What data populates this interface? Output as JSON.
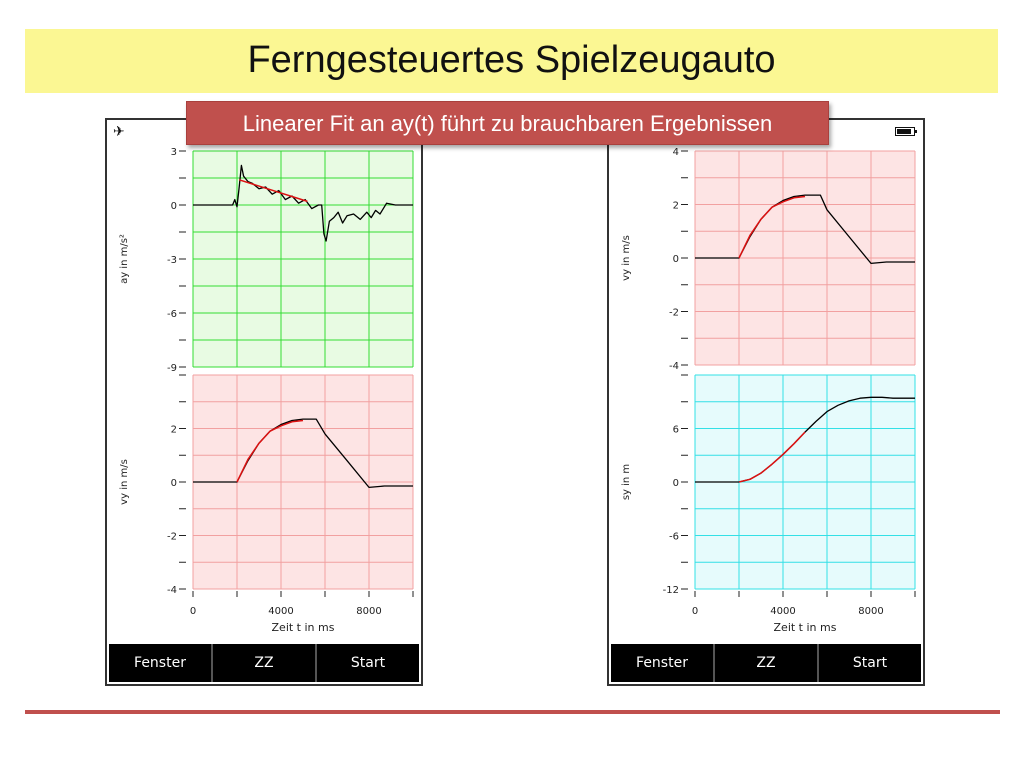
{
  "title": "Ferngesteuertes Spielzeugauto",
  "callout": "Linearer Fit an ay(t) führt zu brauchbaren Ergebnissen",
  "colors": {
    "green_bg": "#e8fbe3",
    "green_grid": "#33dd33",
    "red_bg": "#fde4e4",
    "red_grid": "#f2a0a0",
    "cyan_bg": "#e6fbfc",
    "cyan_grid": "#33e0e6",
    "curve": "#000000",
    "fit": "#dd1111",
    "accent": "#c0504d"
  },
  "phones": [
    {
      "status_icon": "airplane-icon",
      "status_glyph": "✈",
      "xlabel": "Zeit t in ms",
      "buttons": [
        "Fenster",
        "ZZ",
        "Start"
      ]
    },
    {
      "status_icon": "battery-icon",
      "xlabel": "Zeit t in ms",
      "buttons": [
        "Fenster",
        "ZZ",
        "Start"
      ]
    }
  ],
  "chart_data": [
    {
      "type": "line",
      "ylabel": "ay in m/s²",
      "xlim": [
        0,
        10000
      ],
      "ylim": [
        -9,
        3
      ],
      "yticks": [
        3,
        0,
        -3,
        -6,
        -9
      ],
      "theme": "green",
      "series": [
        {
          "x": [
            0,
            1800,
            1900,
            2000,
            2100,
            2200,
            2300,
            2500,
            2700,
            3000,
            3300,
            3600,
            3900,
            4200,
            4500,
            4800,
            5100,
            5400,
            5700,
            5850,
            5950,
            6050,
            6200,
            6400,
            6600,
            6800,
            7000,
            7300,
            7600,
            7900,
            8100,
            8300,
            8500,
            8800,
            9200,
            10000
          ],
          "y": [
            0,
            0,
            0.3,
            -0.1,
            1.0,
            2.2,
            1.6,
            1.3,
            1.2,
            0.9,
            1.0,
            0.6,
            0.8,
            0.3,
            0.5,
            0.1,
            0.3,
            -0.2,
            0,
            0,
            -1.6,
            -2.0,
            -0.9,
            -0.7,
            -0.4,
            -1.0,
            -0.6,
            -0.5,
            -0.8,
            -0.4,
            -0.7,
            -0.3,
            -0.5,
            0.1,
            0,
            0
          ]
        },
        {
          "x": [
            2100,
            5200
          ],
          "y": [
            1.4,
            0.2
          ],
          "fit": true
        }
      ]
    },
    {
      "type": "line",
      "ylabel": "vy in m/s",
      "xlim": [
        0,
        10000
      ],
      "ylim": [
        -4,
        4
      ],
      "yticks": [
        2,
        0,
        -2,
        -4
      ],
      "xticks": [
        0,
        4000,
        8000
      ],
      "theme": "red",
      "series": [
        {
          "x": [
            0,
            2000,
            2500,
            3000,
            3500,
            4000,
            4500,
            5000,
            5600,
            6000,
            7000,
            8000,
            8700,
            9000,
            10000
          ],
          "y": [
            0,
            0,
            0.8,
            1.45,
            1.9,
            2.15,
            2.3,
            2.35,
            2.35,
            1.8,
            0.8,
            -0.2,
            -0.15,
            -0.15,
            -0.15
          ]
        },
        {
          "x": [
            2000,
            2500,
            3000,
            3500,
            4000,
            4500,
            5000
          ],
          "y": [
            0,
            0.85,
            1.45,
            1.9,
            2.1,
            2.25,
            2.3
          ],
          "fit": true
        }
      ]
    },
    {
      "type": "line",
      "ylabel": "vy in m/s",
      "xlim": [
        0,
        10000
      ],
      "ylim": [
        -4,
        4
      ],
      "yticks": [
        4,
        2,
        0,
        -2,
        -4
      ],
      "theme": "red",
      "series": [
        {
          "x": [
            0,
            2000,
            2500,
            3000,
            3500,
            4000,
            4500,
            5000,
            5700,
            6000,
            7000,
            8000,
            8700,
            9000,
            10000
          ],
          "y": [
            0,
            0,
            0.8,
            1.45,
            1.9,
            2.15,
            2.3,
            2.35,
            2.35,
            1.8,
            0.8,
            -0.2,
            -0.15,
            -0.15,
            -0.15
          ]
        },
        {
          "x": [
            2000,
            2500,
            3000,
            3500,
            4000,
            4500,
            5000
          ],
          "y": [
            0,
            0.85,
            1.45,
            1.9,
            2.1,
            2.25,
            2.3
          ],
          "fit": true
        }
      ]
    },
    {
      "type": "line",
      "ylabel": "sy in m",
      "xlim": [
        0,
        10000
      ],
      "ylim": [
        -12,
        12
      ],
      "yticks": [
        6,
        0,
        -6,
        -12
      ],
      "xticks": [
        0,
        4000,
        8000
      ],
      "theme": "cyan",
      "series": [
        {
          "x": [
            0,
            2000,
            2500,
            3000,
            3500,
            4000,
            4500,
            5000,
            5500,
            6000,
            6500,
            7000,
            7500,
            8000,
            8500,
            9000,
            10000
          ],
          "y": [
            0,
            0,
            0.3,
            1.0,
            2.0,
            3.1,
            4.3,
            5.6,
            6.8,
            7.9,
            8.6,
            9.1,
            9.4,
            9.5,
            9.5,
            9.4,
            9.4
          ]
        },
        {
          "x": [
            2000,
            2500,
            3000,
            3500,
            4000,
            4500,
            5000
          ],
          "y": [
            0,
            0.3,
            1.0,
            2.0,
            3.1,
            4.3,
            5.6
          ],
          "fit": true
        }
      ]
    }
  ]
}
